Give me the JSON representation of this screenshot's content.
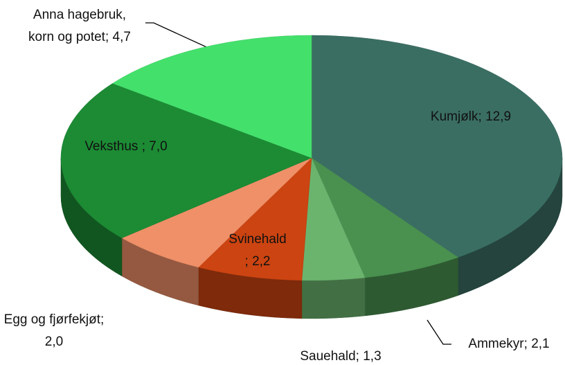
{
  "chart_data": {
    "type": "pie3d",
    "categories": [
      "Kumjølk",
      "Ammekyr",
      "Sauehald",
      "Svinehald",
      "Egg og fjørfekjøt",
      "Veksthus",
      "Anna hagebruk, korn og potet"
    ],
    "values": [
      12.9,
      2.1,
      1.3,
      2.2,
      2.0,
      7.0,
      4.7
    ],
    "value_labels": [
      "12,9",
      "2,1",
      "1,3",
      "2,2",
      "2,0",
      "7,0",
      "4,7"
    ],
    "label_separator": ";",
    "colors": [
      "#3a6e63",
      "#4a9150",
      "#6bb46e",
      "#cc4411",
      "#ef9068",
      "#1c8b34",
      "#44e06c"
    ]
  }
}
